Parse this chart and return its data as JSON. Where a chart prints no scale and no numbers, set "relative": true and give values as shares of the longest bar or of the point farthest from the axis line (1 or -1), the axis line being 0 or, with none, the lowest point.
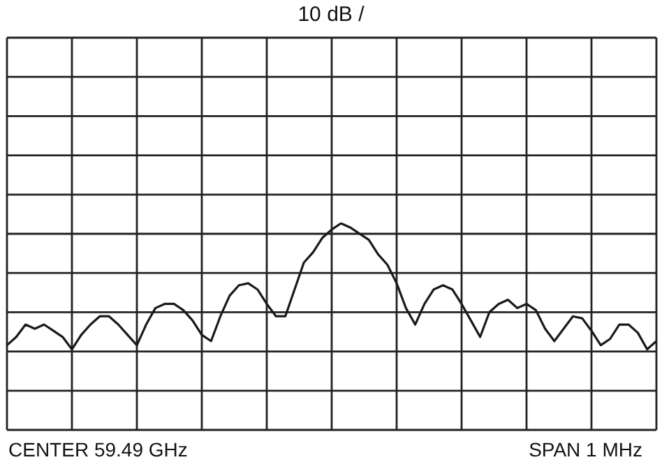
{
  "chart_data": {
    "type": "line",
    "title": "10 dB /",
    "relative": true,
    "grid": true,
    "color": "#1a1a1a",
    "annotations": [
      "CENTER  59.49 GHz",
      "SPAN 1 MHz"
    ],
    "categories": [
      null,
      null,
      null,
      null,
      null,
      null,
      null,
      null,
      null,
      null,
      null,
      null,
      null,
      null,
      null,
      null,
      null,
      null,
      null,
      null,
      null,
      null,
      null,
      null,
      null,
      null,
      null,
      null,
      null,
      null,
      null,
      null,
      null,
      null,
      null,
      null,
      null,
      null,
      null,
      null,
      null,
      null,
      null,
      null,
      null,
      null,
      null,
      null,
      null,
      null,
      null,
      null,
      null,
      null,
      null,
      null,
      null,
      null,
      null,
      null,
      null,
      null,
      null,
      null,
      null,
      null,
      null,
      null,
      null,
      null,
      null
    ],
    "values": [
      0.41,
      0.45,
      0.51,
      0.49,
      0.51,
      0.48,
      0.45,
      0.39,
      0.46,
      0.51,
      0.55,
      0.55,
      0.51,
      0.46,
      0.41,
      0.51,
      0.59,
      0.61,
      0.61,
      0.58,
      0.53,
      0.46,
      0.43,
      0.55,
      0.65,
      0.7,
      0.71,
      0.68,
      0.61,
      0.55,
      0.55,
      0.68,
      0.81,
      0.86,
      0.93,
      0.97,
      1,
      0.98,
      0.95,
      0.92,
      0.85,
      0.8,
      0.71,
      0.59,
      0.51,
      0.61,
      0.68,
      0.7,
      0.68,
      0.61,
      0.53,
      0.45,
      0.57,
      0.61,
      0.63,
      0.59,
      0.61,
      0.58,
      0.49,
      0.43,
      0.49,
      0.55,
      0.54,
      0.48,
      0.41,
      0.44,
      0.51,
      0.51,
      0.47,
      0.39,
      0.43
    ]
  }
}
